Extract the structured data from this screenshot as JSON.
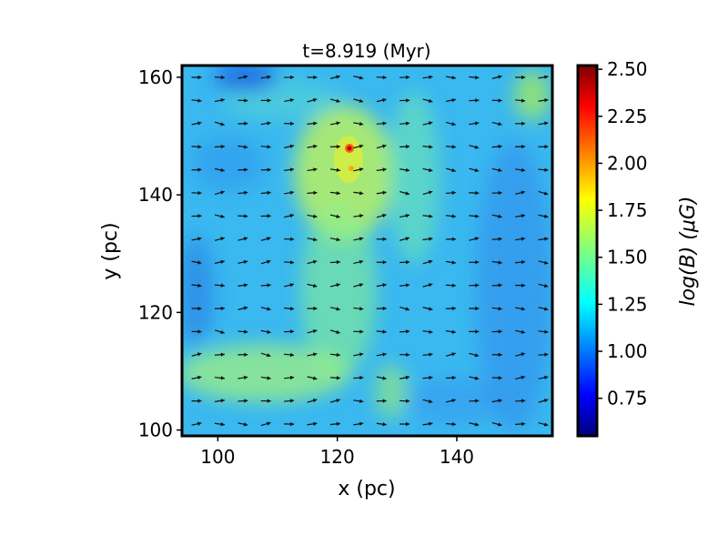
{
  "chart_data": {
    "type": "heatmap",
    "title": "t=8.919 (Myr)",
    "xlabel": "x (pc)",
    "ylabel": "y (pc)",
    "xlim": [
      94,
      156
    ],
    "ylim": [
      99,
      162
    ],
    "xticks": [
      100,
      120,
      140
    ],
    "xtick_labels": [
      "100",
      "120",
      "140"
    ],
    "yticks": [
      100,
      120,
      140,
      160
    ],
    "ytick_labels": [
      "100",
      "120",
      "140",
      "160"
    ],
    "colorbar": {
      "label": "log(B) (μG)",
      "colormap": "jet",
      "range": [
        0.55,
        2.52
      ],
      "ticks": [
        0.75,
        1.0,
        1.25,
        1.5,
        1.75,
        2.0,
        2.25,
        2.5
      ],
      "tick_labels": [
        "0.75",
        "1.00",
        "1.25",
        "1.50",
        "1.75",
        "2.00",
        "2.25",
        "2.50"
      ]
    },
    "field_overlay": "magnetic field direction arrows (quiver)",
    "grid": false
  }
}
